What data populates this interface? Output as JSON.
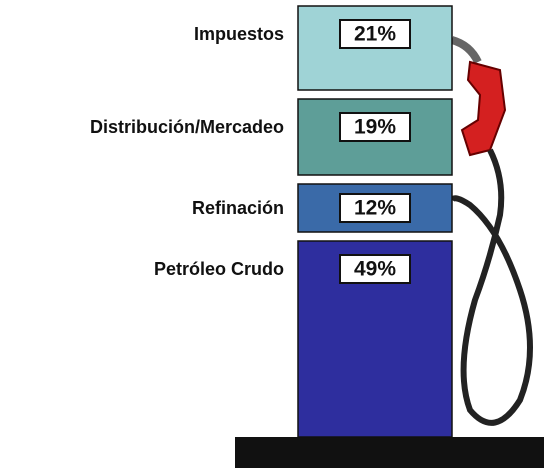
{
  "chart_data": {
    "type": "stacked-bar",
    "series": [
      {
        "name": "Petróleo Crudo",
        "color": "#2e2e9e",
        "values": [
          49
        ],
        "value_labels": [
          "49%"
        ]
      },
      {
        "name": "Refinación",
        "color": "#3a6aa8",
        "values": [
          12
        ],
        "value_labels": [
          "12%"
        ]
      },
      {
        "name": "Distribución/Mercadeo",
        "color": "#5e9e98",
        "values": [
          19
        ],
        "value_labels": [
          "19%"
        ]
      },
      {
        "name": "Impuestos",
        "color": "#9fd3d6",
        "values": [
          21
        ],
        "value_labels": [
          "21%"
        ]
      }
    ]
  }
}
